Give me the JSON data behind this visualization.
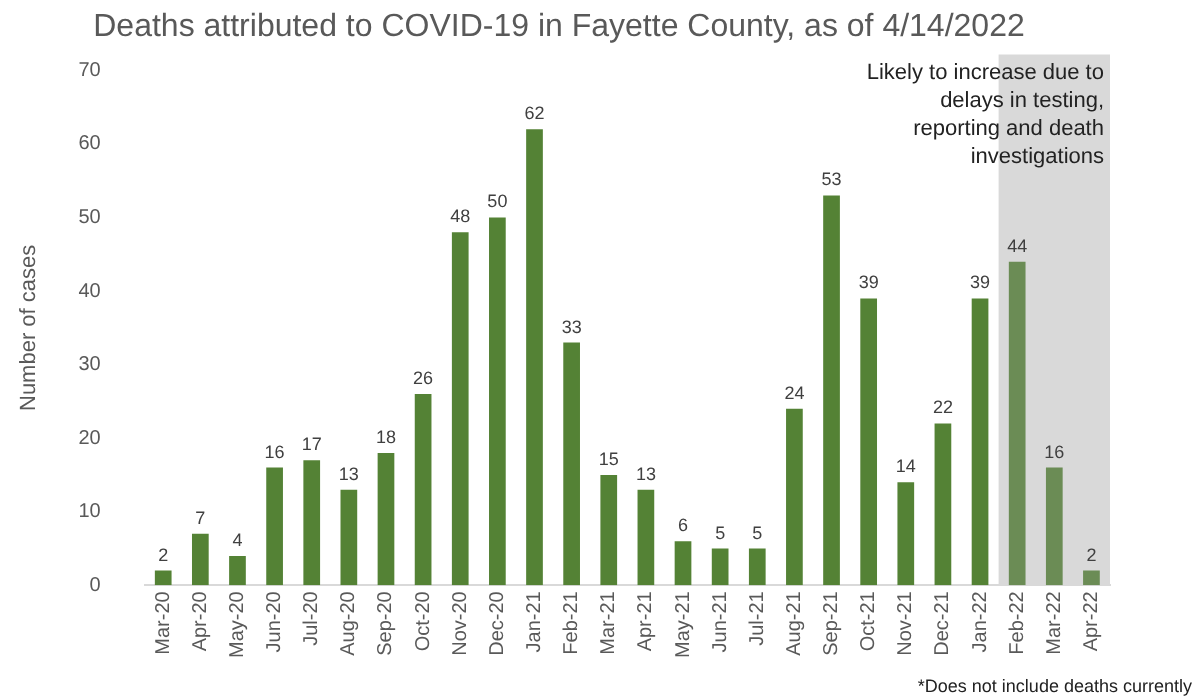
{
  "chart_data": {
    "type": "bar",
    "title": "Deaths attributed to COVID-19 in Fayette County, as of 4/14/2022",
    "ylabel": "Number of cases",
    "categories": [
      "Mar-20",
      "Apr-20",
      "May-20",
      "Jun-20",
      "Jul-20",
      "Aug-20",
      "Sep-20",
      "Oct-20",
      "Nov-20",
      "Dec-20",
      "Jan-21",
      "Feb-21",
      "Mar-21",
      "Apr-21",
      "May-21",
      "Jun-21",
      "Jul-21",
      "Aug-21",
      "Sep-21",
      "Oct-21",
      "Nov-21",
      "Dec-21",
      "Jan-22",
      "Feb-22",
      "Mar-22",
      "Apr-22"
    ],
    "values": [
      2,
      7,
      4,
      16,
      17,
      13,
      18,
      26,
      48,
      50,
      62,
      33,
      15,
      13,
      6,
      5,
      5,
      24,
      53,
      39,
      14,
      22,
      39,
      44,
      16,
      2
    ],
    "colors": [
      "#548235",
      "#548235",
      "#548235",
      "#548235",
      "#548235",
      "#548235",
      "#548235",
      "#548235",
      "#548235",
      "#548235",
      "#548235",
      "#548235",
      "#548235",
      "#548235",
      "#548235",
      "#548235",
      "#548235",
      "#548235",
      "#548235",
      "#548235",
      "#548235",
      "#548235",
      "#548235",
      "#6b8c55",
      "#6b8c55",
      "#6b8c55"
    ],
    "ylim": [
      0,
      70
    ],
    "yticks": [
      0,
      10,
      20,
      30,
      40,
      50,
      60,
      70
    ],
    "grid": false,
    "legend": false,
    "data_labels": true,
    "bands": [
      {
        "axis": "x",
        "from": "Feb-22",
        "to": "Apr-22",
        "label": "Likely to increase due to delays in testing, reporting and death investigations",
        "color": "#d9d9d9"
      }
    ],
    "annotations": [
      "*Does not include deaths currently"
    ]
  }
}
